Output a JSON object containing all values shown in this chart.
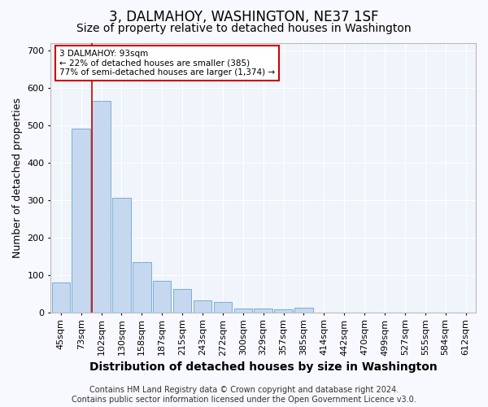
{
  "title": "3, DALMAHOY, WASHINGTON, NE37 1SF",
  "subtitle": "Size of property relative to detached houses in Washington",
  "xlabel": "Distribution of detached houses by size in Washington",
  "ylabel": "Number of detached properties",
  "footer_line1": "Contains HM Land Registry data © Crown copyright and database right 2024.",
  "footer_line2": "Contains public sector information licensed under the Open Government Licence v3.0.",
  "bar_labels": [
    "45sqm",
    "73sqm",
    "102sqm",
    "130sqm",
    "158sqm",
    "187sqm",
    "215sqm",
    "243sqm",
    "272sqm",
    "300sqm",
    "329sqm",
    "357sqm",
    "385sqm",
    "414sqm",
    "442sqm",
    "470sqm",
    "499sqm",
    "527sqm",
    "555sqm",
    "584sqm",
    "612sqm"
  ],
  "bar_values": [
    80,
    490,
    565,
    305,
    135,
    85,
    62,
    32,
    27,
    10,
    10,
    8,
    12,
    0,
    0,
    0,
    0,
    0,
    0,
    0,
    0
  ],
  "bar_color": "#c5d8f0",
  "bar_edge_color": "#7aafd4",
  "vline_color": "#cc0000",
  "annotation_line1": "3 DALMAHOY: 93sqm",
  "annotation_line2": "← 22% of detached houses are smaller (385)",
  "annotation_line3": "77% of semi-detached houses are larger (1,374) →",
  "annotation_box_color": "#ffffff",
  "annotation_box_edge_color": "#cc0000",
  "ylim": [
    0,
    720
  ],
  "yticks": [
    0,
    100,
    200,
    300,
    400,
    500,
    600,
    700
  ],
  "background_color": "#f8f8ff",
  "plot_bg_color": "#f0f4fb",
  "grid_color": "#ffffff",
  "title_fontsize": 12,
  "subtitle_fontsize": 10,
  "xlabel_fontsize": 10,
  "ylabel_fontsize": 9,
  "tick_fontsize": 8,
  "footer_fontsize": 7,
  "vline_bar_index": 1.55
}
